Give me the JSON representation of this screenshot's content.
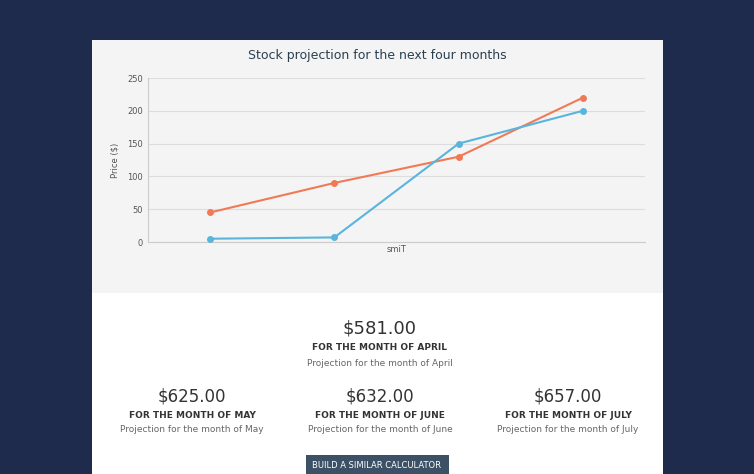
{
  "chart_data": {
    "type": "line",
    "title": "Stock projection for the next four months",
    "x_label": "smiT",
    "y_label": "Price ($)",
    "categories": [
      null,
      null,
      null,
      null
    ],
    "series": [
      {
        "color": "#f07a55",
        "marker": "o",
        "values": [
          45,
          90,
          130,
          220
        ]
      },
      {
        "color": "#5ab4dc",
        "marker": "o",
        "values": [
          5,
          7,
          150,
          200
        ]
      }
    ],
    "ylim": [
      0,
      250
    ],
    "yticks": [
      0,
      50,
      100,
      150,
      200,
      250
    ],
    "grid": true
  },
  "projections": [
    {
      "amount": "$581.00",
      "heading": "FOR THE MONTH OF APRIL",
      "description": "Projection for the month of April"
    },
    {
      "amount": "$625.00",
      "heading": "FOR THE MONTH OF MAY",
      "description": "Projection for the month of May"
    },
    {
      "amount": "$632.00",
      "heading": "FOR THE MONTH OF JUNE",
      "description": "Projection for the month of June"
    },
    {
      "amount": "$657.00",
      "heading": "FOR THE MONTH OF JULY",
      "description": "Projection for the month of July"
    }
  ],
  "button": "BUILD A SIMILAR CALCULATOR"
}
